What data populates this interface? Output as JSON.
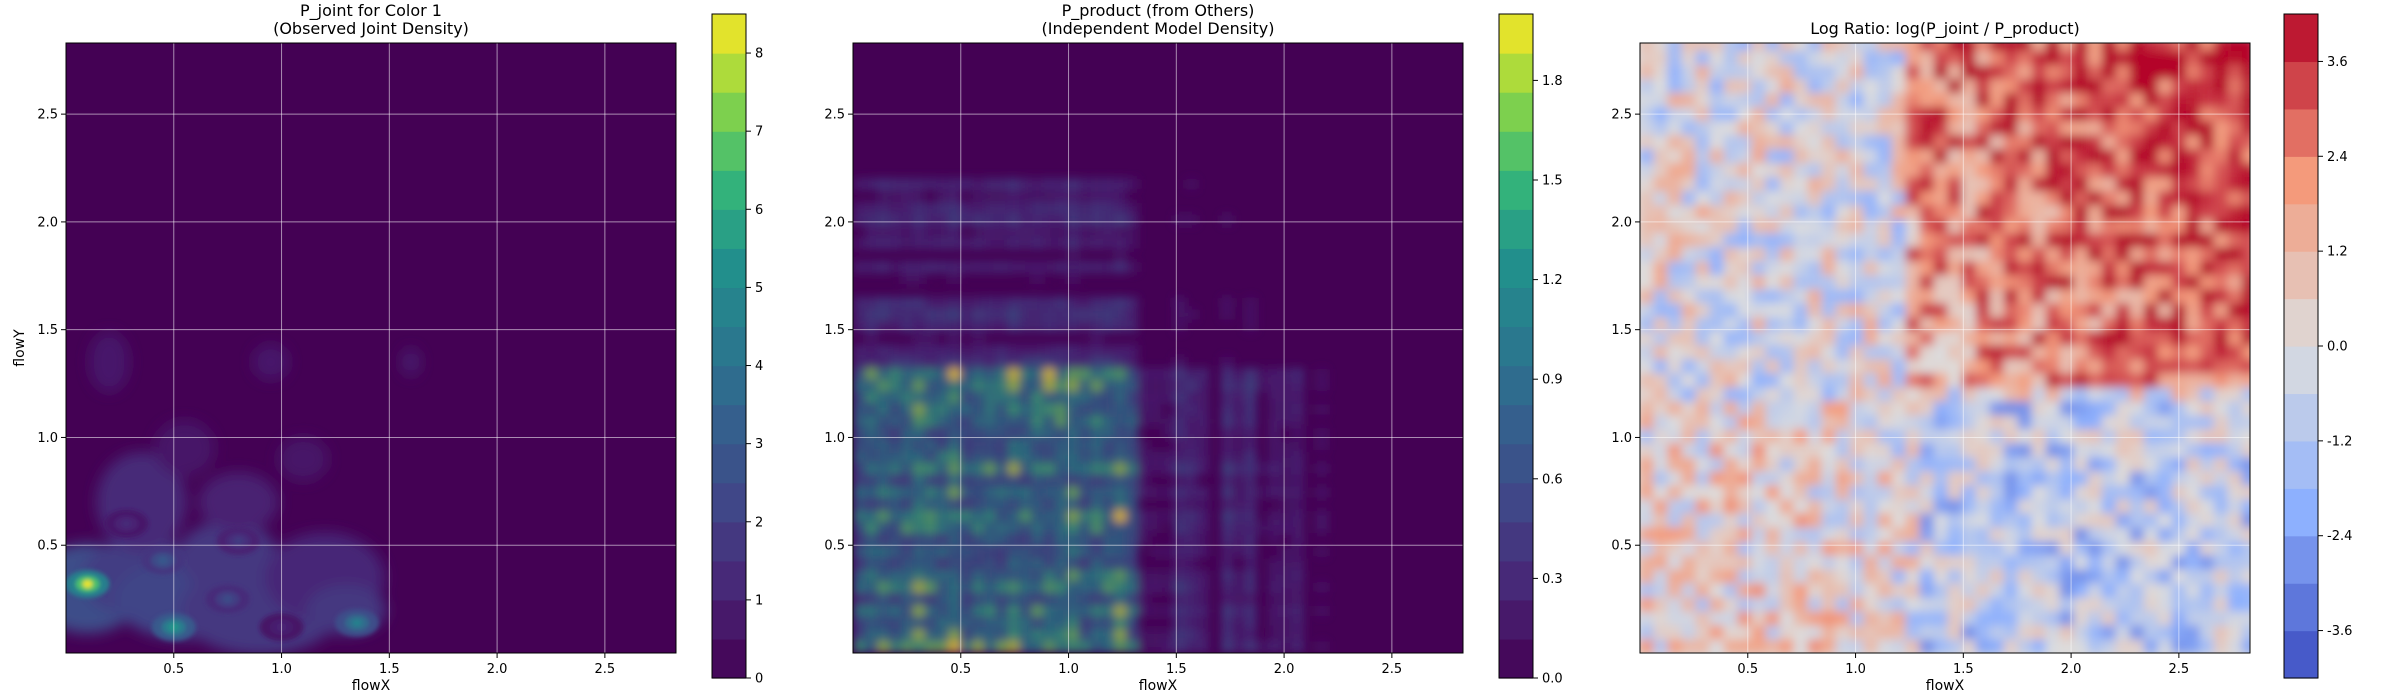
{
  "chart_data": [
    {
      "type": "heatmap",
      "title": "P_joint for Color 1\n(Observed Joint Density)",
      "xlabel": "flowX",
      "ylabel": "flowY",
      "xlim": [
        0,
        2.83
      ],
      "ylim": [
        0,
        2.83
      ],
      "xticks": [
        "0.5",
        "1.0",
        "1.5",
        "2.0",
        "2.5"
      ],
      "yticks": [
        "0.5",
        "1.0",
        "1.5",
        "2.0",
        "2.5"
      ],
      "colormap": "viridis",
      "grid": true,
      "colorbar": {
        "min": 0,
        "max": 8.5,
        "ticks": [
          "0",
          "1",
          "2",
          "3",
          "4",
          "5",
          "6",
          "7",
          "8"
        ]
      },
      "peaks": [
        {
          "x": 0.1,
          "y": 0.32,
          "value": 8.3
        },
        {
          "x": 0.5,
          "y": 0.12,
          "value": 5.5
        },
        {
          "x": 1.35,
          "y": 0.14,
          "value": 4.6
        },
        {
          "x": 0.45,
          "y": 0.43,
          "value": 3.0
        },
        {
          "x": 0.75,
          "y": 0.25,
          "value": 2.4
        },
        {
          "x": 0.8,
          "y": 0.52,
          "value": 1.8
        },
        {
          "x": 0.28,
          "y": 0.6,
          "value": 1.3
        },
        {
          "x": 1.0,
          "y": 0.12,
          "value": 1.1
        }
      ]
    },
    {
      "type": "heatmap",
      "title": "P_product (from Others)\n(Independent Model Density)",
      "xlabel": "flowX",
      "ylabel": "",
      "xlim": [
        0,
        2.83
      ],
      "ylim": [
        0,
        2.83
      ],
      "xticks": [
        "0.5",
        "1.0",
        "1.5",
        "2.0",
        "2.5"
      ],
      "yticks": [
        "0.5",
        "1.0",
        "1.5",
        "2.0",
        "2.5"
      ],
      "colormap": "viridis",
      "grid": true,
      "colorbar": {
        "min": 0,
        "max": 2.0,
        "ticks": [
          "0.0",
          "0.3",
          "0.6",
          "0.9",
          "1.2",
          "1.5",
          "1.8"
        ]
      }
    },
    {
      "type": "heatmap",
      "title": "Log Ratio: log(P_joint / P_product)",
      "xlabel": "flowX",
      "ylabel": "",
      "xlim": [
        0,
        2.83
      ],
      "ylim": [
        0,
        2.83
      ],
      "xticks": [
        "0.5",
        "1.0",
        "1.5",
        "2.0",
        "2.5"
      ],
      "yticks": [
        "0.5",
        "1.0",
        "1.5",
        "2.0",
        "2.5"
      ],
      "colormap": "coolwarm",
      "grid": true,
      "colorbar": {
        "min": -4.2,
        "max": 4.2,
        "ticks": [
          "-3.6",
          "-2.4",
          "-1.2",
          "0.0",
          "1.2",
          "2.4",
          "3.6"
        ]
      }
    }
  ]
}
